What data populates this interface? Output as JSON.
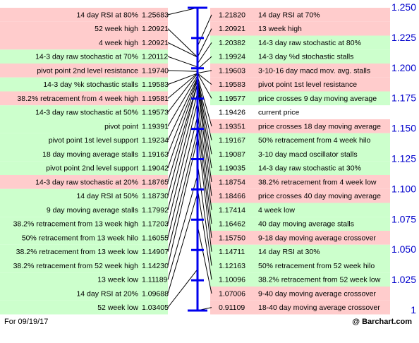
{
  "footer": {
    "date": "For 09/19/17",
    "brand": "@ Barchart.com"
  },
  "colors": {
    "green": "#ccffcc",
    "red": "#ffcccc",
    "axis": "#0000ee",
    "axis_text": "#0000cc",
    "line": "#000000"
  },
  "chart_data": {
    "type": "cheat-sheet",
    "axis": {
      "min": 1.0,
      "max": 1.25,
      "ticks": [
        "1.250",
        "1.225",
        "1.200",
        "1.175",
        "1.150",
        "1.125",
        "1.100",
        "1.075",
        "1.050",
        "1.025",
        "1"
      ]
    },
    "current_price": {
      "value": "1.19426",
      "label": "current price"
    },
    "left": [
      {
        "label": "14 day RSI at 80%",
        "value": "1.25683",
        "color": "red"
      },
      {
        "label": "52 week high",
        "value": "1.20921",
        "color": "red"
      },
      {
        "label": "4 week high",
        "value": "1.20921",
        "color": "red"
      },
      {
        "label": "14-3 day raw stochastic at 70%",
        "value": "1.20112",
        "color": "green"
      },
      {
        "label": "pivot point 2nd level resistance",
        "value": "1.19740",
        "color": "red"
      },
      {
        "label": "14-3 day %k stochastic stalls",
        "value": "1.19583",
        "color": "green"
      },
      {
        "label": "38.2% retracement from 4 week high",
        "value": "1.19581",
        "color": "red"
      },
      {
        "label": "14-3 day raw stochastic at 50%",
        "value": "1.19573",
        "color": "green"
      },
      {
        "label": "pivot point",
        "value": "1.19391",
        "color": "green"
      },
      {
        "label": "pivot point 1st level support",
        "value": "1.19234",
        "color": "green"
      },
      {
        "label": "18 day moving average stalls",
        "value": "1.19163",
        "color": "green"
      },
      {
        "label": "pivot point 2nd level support",
        "value": "1.19042",
        "color": "green"
      },
      {
        "label": "14-3 day raw stochastic at 20%",
        "value": "1.18765",
        "color": "red"
      },
      {
        "label": "14 day RSI at 50%",
        "value": "1.18730",
        "color": "green"
      },
      {
        "label": "9 day moving average stalls",
        "value": "1.17992",
        "color": "green"
      },
      {
        "label": "38.2% retracement from 13 week high",
        "value": "1.17203",
        "color": "green"
      },
      {
        "label": "50% retracement from 13 week hilo",
        "value": "1.16055",
        "color": "green"
      },
      {
        "label": "38.2% retracement from 13 week low",
        "value": "1.14907",
        "color": "green"
      },
      {
        "label": "38.2% retracement from 52 week high",
        "value": "1.14230",
        "color": "green"
      },
      {
        "label": "13 week low",
        "value": "1.11189",
        "color": "green"
      },
      {
        "label": "14 day RSI at 20%",
        "value": "1.09688",
        "color": "green"
      },
      {
        "label": "52 week low",
        "value": "1.03405",
        "color": "green"
      }
    ],
    "right": [
      {
        "label": "14 day RSI at 70%",
        "value": "1.21820",
        "color": "red"
      },
      {
        "label": "13 week high",
        "value": "1.20921",
        "color": "red"
      },
      {
        "label": "14-3 day raw stochastic at 80%",
        "value": "1.20382",
        "color": "green"
      },
      {
        "label": "14-3 day %d stochastic stalls",
        "value": "1.19924",
        "color": "green"
      },
      {
        "label": "3-10-16 day macd mov. avg. stalls",
        "value": "1.19603",
        "color": "red"
      },
      {
        "label": "pivot point 1st level resistance",
        "value": "1.19583",
        "color": "red"
      },
      {
        "label": "price crosses 9 day moving average",
        "value": "1.19577",
        "color": "green"
      },
      {
        "label": "current price",
        "value": "1.19426",
        "color": "white"
      },
      {
        "label": "price crosses 18 day moving average",
        "value": "1.19351",
        "color": "red"
      },
      {
        "label": "50% retracement from 4 week hilo",
        "value": "1.19167",
        "color": "green"
      },
      {
        "label": "3-10 day macd oscillator stalls",
        "value": "1.19087",
        "color": "green"
      },
      {
        "label": "14-3 day raw stochastic at 30%",
        "value": "1.19035",
        "color": "green"
      },
      {
        "label": "38.2% retracement from 4 week low",
        "value": "1.18754",
        "color": "red"
      },
      {
        "label": "price crosses 40 day moving average",
        "value": "1.18466",
        "color": "red"
      },
      {
        "label": "4 week low",
        "value": "1.17414",
        "color": "green"
      },
      {
        "label": "40 day moving average stalls",
        "value": "1.16462",
        "color": "green"
      },
      {
        "label": "9-18 day moving average crossover",
        "value": "1.15750",
        "color": "red"
      },
      {
        "label": "14 day RSI at 30%",
        "value": "1.14711",
        "color": "green"
      },
      {
        "label": "50% retracement from 52 week hilo",
        "value": "1.12163",
        "color": "green"
      },
      {
        "label": "38.2% retracement from 52 week low",
        "value": "1.10096",
        "color": "green"
      },
      {
        "label": "9-40 day moving average crossover",
        "value": "1.07006",
        "color": "red"
      },
      {
        "label": "18-40 day moving average crossover",
        "value": "0.91109",
        "color": "red"
      }
    ]
  }
}
